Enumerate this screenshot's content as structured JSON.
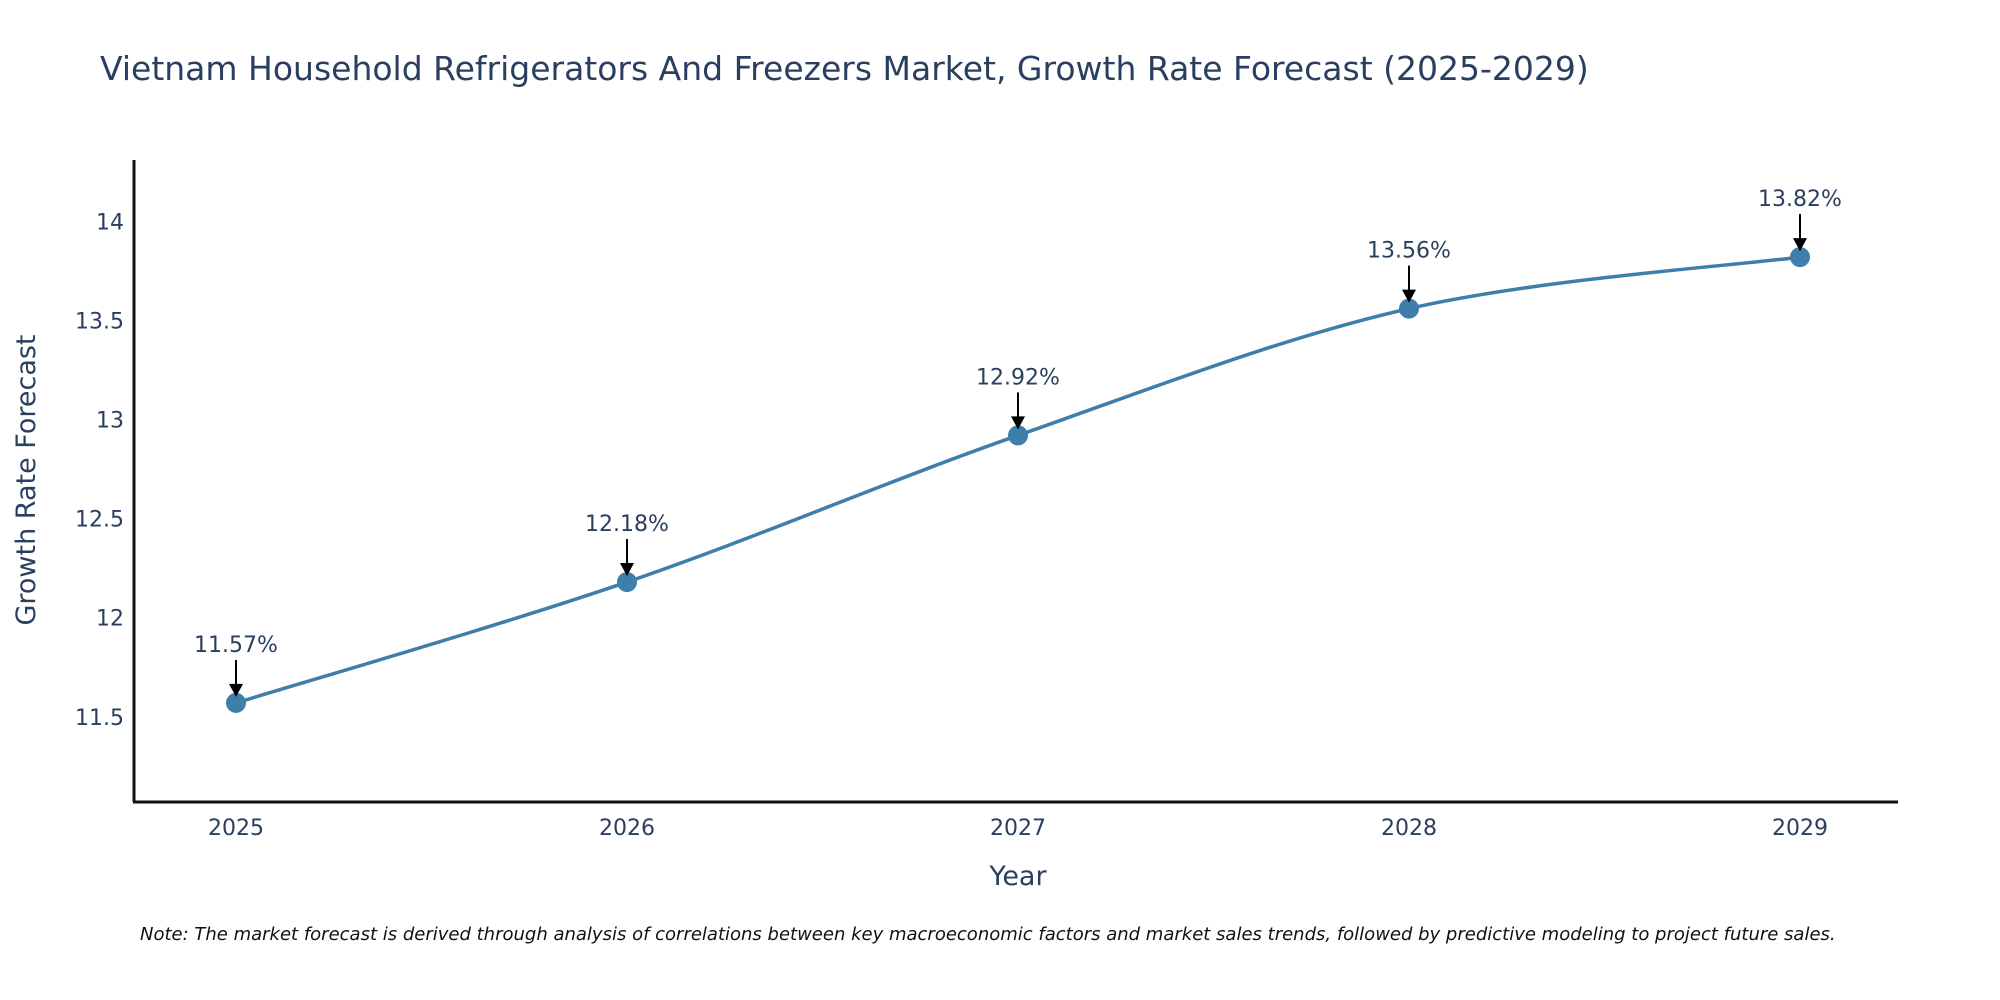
{
  "chart_data": {
    "type": "line",
    "title": "Vietnam Household Refrigerators And Freezers Market, Growth Rate Forecast (2025-2029)",
    "xlabel": "Year",
    "ylabel": "Growth Rate Forecast",
    "x": [
      "2025",
      "2026",
      "2027",
      "2028",
      "2029"
    ],
    "series": [
      {
        "name": "Growth Rate Forecast",
        "values": [
          11.57,
          12.18,
          12.92,
          13.56,
          13.82
        ],
        "labels": [
          "11.57%",
          "12.18%",
          "12.92%",
          "13.56%",
          "13.82%"
        ],
        "color": "#3d7eaa"
      }
    ],
    "yticks": [
      "11.5",
      "12",
      "12.5",
      "13",
      "13.5",
      "14"
    ],
    "ylim": [
      11.07,
      14.31
    ],
    "grid": false,
    "note": "Note: The market forecast is derived through analysis of correlations between key macroeconomic factors and market sales trends, followed by predictive modeling to project future sales."
  }
}
